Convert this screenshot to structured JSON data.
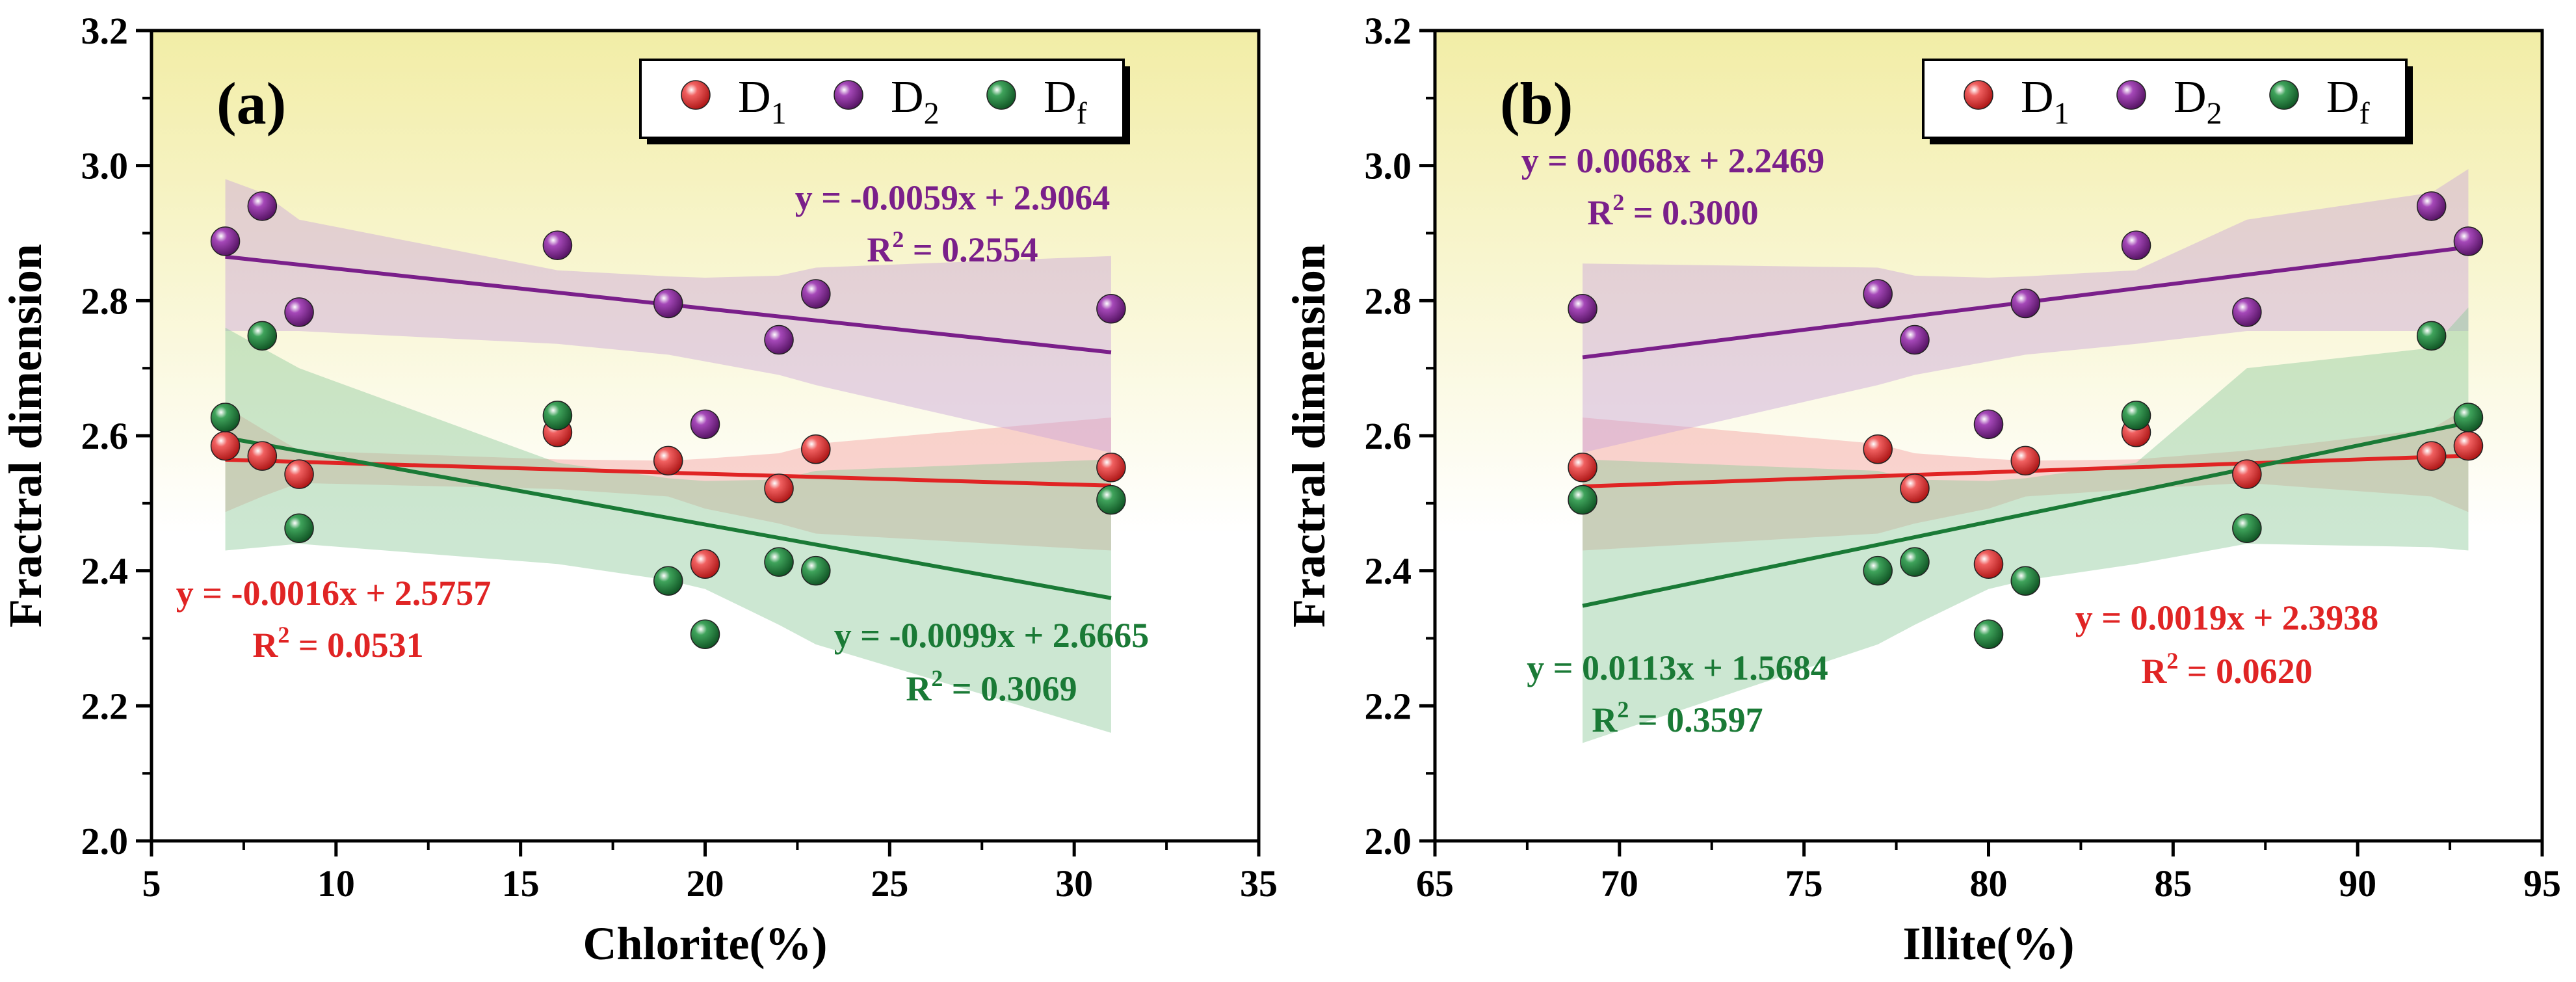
{
  "figure": {
    "colors": {
      "D1": "#e02424",
      "D2": "#7a1f8a",
      "Df": "#1a7a36",
      "band_D1": "#f4a0a0",
      "band_D2": "#c9a3d9",
      "band_Df": "#8ec99b",
      "bg_top": "#f2eda6",
      "bg_bottom": "#ffffff"
    },
    "legend_labels": [
      {
        "base": "D",
        "sub": "1",
        "key": "D1"
      },
      {
        "base": "D",
        "sub": "2",
        "key": "D2"
      },
      {
        "base": "D",
        "sub": "f",
        "key": "Df"
      }
    ]
  },
  "chart_data": [
    {
      "type": "scatter",
      "panel_label": "(a)",
      "xlabel": "Chlorite(%)",
      "ylabel": "Fractral dimension",
      "xlim": [
        5,
        35
      ],
      "ylim": [
        2.0,
        3.2
      ],
      "xticks": [
        "5",
        "10",
        "15",
        "20",
        "25",
        "30",
        "35"
      ],
      "yticks": [
        "2.0",
        "2.2",
        "2.4",
        "2.6",
        "2.8",
        "3.0",
        "3.2"
      ],
      "legend_position": "top-right",
      "series": [
        {
          "name": "D1",
          "key": "D1",
          "x": [
            7,
            8,
            9,
            16,
            19,
            20,
            22,
            23,
            31
          ],
          "y": [
            2.585,
            2.57,
            2.543,
            2.605,
            2.563,
            2.41,
            2.522,
            2.58,
            2.553
          ],
          "fit": {
            "slope": -0.0016,
            "intercept": 2.5757,
            "range": [
              7,
              31
            ]
          },
          "band_upper": [
            2.643,
            2.61,
            2.578,
            2.565,
            2.563,
            2.566,
            2.574,
            2.588,
            2.627
          ],
          "band_lower": [
            2.487,
            2.51,
            2.53,
            2.521,
            2.51,
            2.492,
            2.47,
            2.455,
            2.43
          ],
          "equation": "y = -0.0016x + 2.5757",
          "r2_value": " = 0.0531"
        },
        {
          "name": "D2",
          "key": "D2",
          "x": [
            7,
            8,
            9,
            16,
            19,
            20,
            22,
            23,
            31
          ],
          "y": [
            2.888,
            2.94,
            2.783,
            2.882,
            2.796,
            2.617,
            2.742,
            2.81,
            2.788
          ],
          "fit": {
            "slope": -0.0059,
            "intercept": 2.9064,
            "range": [
              7,
              31
            ]
          },
          "band_upper": [
            2.98,
            2.96,
            2.92,
            2.845,
            2.836,
            2.834,
            2.837,
            2.849,
            2.866
          ],
          "band_lower": [
            2.755,
            2.755,
            2.755,
            2.736,
            2.72,
            2.71,
            2.69,
            2.675,
            2.575
          ],
          "equation": "y = -0.0059x + 2.9064",
          "r2_value": " = 0.2554"
        },
        {
          "name": "Df",
          "key": "Df",
          "x": [
            7,
            8,
            9,
            16,
            19,
            20,
            22,
            23,
            31
          ],
          "y": [
            2.627,
            2.748,
            2.463,
            2.63,
            2.385,
            2.306,
            2.413,
            2.4,
            2.505
          ],
          "fit": {
            "slope": -0.0099,
            "intercept": 2.6665,
            "range": [
              7,
              31
            ]
          },
          "band_upper": [
            2.76,
            2.73,
            2.7,
            2.56,
            2.537,
            2.533,
            2.535,
            2.548,
            2.565
          ],
          "band_lower": [
            2.43,
            2.435,
            2.44,
            2.41,
            2.386,
            2.373,
            2.32,
            2.291,
            2.16
          ],
          "equation": "y = -0.0099x + 2.6665",
          "r2_value": " = 0.3069"
        }
      ]
    },
    {
      "type": "scatter",
      "panel_label": "(b)",
      "xlabel": "Illite(%)",
      "ylabel": "Fractral dimension",
      "xlim": [
        65,
        95
      ],
      "ylim": [
        2.0,
        3.2
      ],
      "xticks": [
        "65",
        "70",
        "75",
        "80",
        "85",
        "90",
        "95"
      ],
      "yticks": [
        "2.0",
        "2.2",
        "2.4",
        "2.6",
        "2.8",
        "3.0",
        "3.2"
      ],
      "legend_position": "top-right",
      "series": [
        {
          "name": "D1",
          "key": "D1",
          "x": [
            69,
            77,
            78,
            80,
            81,
            84,
            87,
            92,
            93
          ],
          "y": [
            2.553,
            2.58,
            2.522,
            2.41,
            2.563,
            2.605,
            2.543,
            2.57,
            2.585
          ],
          "fit": {
            "slope": 0.0019,
            "intercept": 2.3938,
            "range": [
              69,
              93
            ]
          },
          "band_upper": [
            2.627,
            2.588,
            2.574,
            2.566,
            2.563,
            2.565,
            2.578,
            2.61,
            2.643
          ],
          "band_lower": [
            2.43,
            2.455,
            2.47,
            2.492,
            2.51,
            2.521,
            2.53,
            2.51,
            2.487
          ],
          "equation": "y = 0.0019x + 2.3938",
          "r2_value": " = 0.0620"
        },
        {
          "name": "D2",
          "key": "D2",
          "x": [
            69,
            77,
            78,
            80,
            81,
            84,
            87,
            92,
            93
          ],
          "y": [
            2.788,
            2.81,
            2.742,
            2.617,
            2.796,
            2.882,
            2.783,
            2.94,
            2.888
          ],
          "fit": {
            "slope": 0.0068,
            "intercept": 2.2469,
            "range": [
              69,
              93
            ]
          },
          "band_upper": [
            2.855,
            2.849,
            2.837,
            2.834,
            2.836,
            2.845,
            2.92,
            2.96,
            2.995
          ],
          "band_lower": [
            2.575,
            2.675,
            2.69,
            2.71,
            2.72,
            2.736,
            2.755,
            2.755,
            2.755
          ],
          "equation": "y = 0.0068x + 2.2469",
          "r2_value": " = 0.3000"
        },
        {
          "name": "Df",
          "key": "Df",
          "x": [
            69,
            77,
            78,
            80,
            81,
            84,
            87,
            92,
            93
          ],
          "y": [
            2.505,
            2.4,
            2.413,
            2.306,
            2.385,
            2.63,
            2.463,
            2.748,
            2.627
          ],
          "fit": {
            "slope": 0.0113,
            "intercept": 1.5684,
            "range": [
              69,
              93
            ]
          },
          "band_upper": [
            2.565,
            2.548,
            2.535,
            2.533,
            2.537,
            2.56,
            2.7,
            2.73,
            2.79
          ],
          "band_lower": [
            2.145,
            2.291,
            2.32,
            2.373,
            2.386,
            2.41,
            2.44,
            2.435,
            2.43
          ],
          "equation": "y = 0.0113x + 1.5684",
          "r2_value": " = 0.3597"
        }
      ]
    }
  ]
}
